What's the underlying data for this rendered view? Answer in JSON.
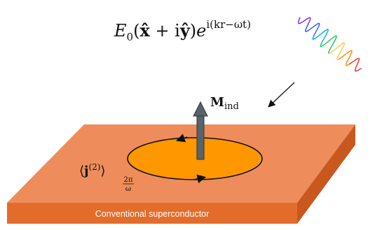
{
  "equation": {
    "e0": "E",
    "e0_sub": "0",
    "open_paren": "(",
    "xhat": "x̂",
    "plus_i": " + i",
    "yhat": "ŷ",
    "close_paren": ")",
    "exp_base": "e",
    "exp_arg": "i(kr−ωt)"
  },
  "magnetization": {
    "symbol": "M",
    "subscript": "ind"
  },
  "current": {
    "open_bracket": "⟨",
    "symbol": "j",
    "superscript": "(2)",
    "close_bracket": "⟩",
    "sub_numerator": "2π",
    "sub_denominator": "ω"
  },
  "slab": {
    "label": "Conventional superconductor"
  },
  "colors": {
    "slab_top": "#EE8D5B",
    "slab_front": "#E46C2B",
    "slab_side": "#C9581E",
    "current_loop": "#FF9700",
    "arrow": "#56636B",
    "wave_colors": [
      "#8A2BE2",
      "#3B5BFF",
      "#00B5E2",
      "#22C55E",
      "#F4D03F",
      "#FF8C00",
      "#E53935"
    ]
  }
}
